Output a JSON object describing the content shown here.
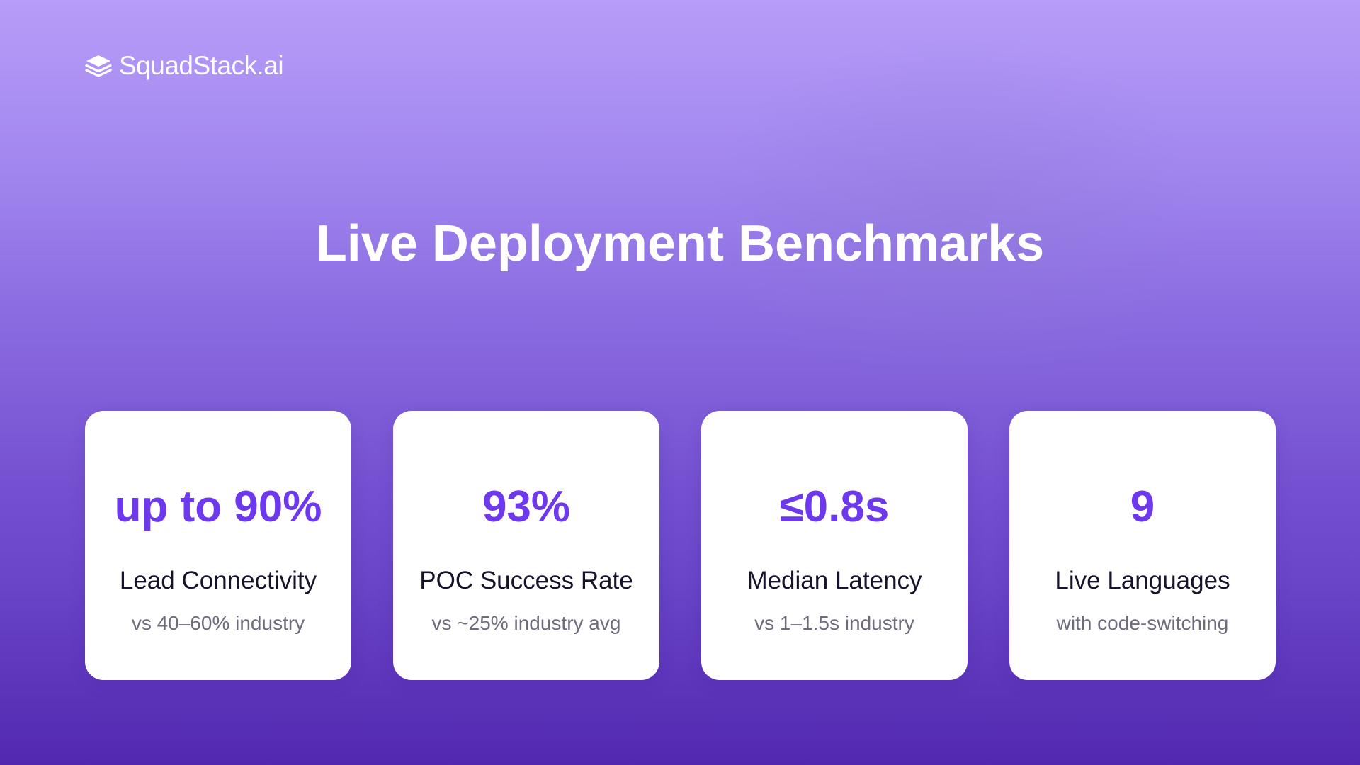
{
  "brand": {
    "name": "SquadStack.ai",
    "logo_icon": "stacked-layers-icon"
  },
  "title": "Live Deployment Benchmarks",
  "cards": [
    {
      "value": "up to 90%",
      "label": "Lead Connectivity",
      "sub": "vs 40–60% industry"
    },
    {
      "value": "93%",
      "label": "POC Success Rate",
      "sub": "vs ~25% industry avg"
    },
    {
      "value": "≤0.8s",
      "label": "Median Latency",
      "sub": "vs 1–1.5s industry"
    },
    {
      "value": "9",
      "label": "Live Languages",
      "sub": "with code-switching"
    }
  ],
  "colors": {
    "accent": "#6d38ee",
    "label_text": "#16132b",
    "sub_text": "#6e6b7c",
    "background_top": "#b79df8",
    "background_bottom": "#5128af"
  }
}
